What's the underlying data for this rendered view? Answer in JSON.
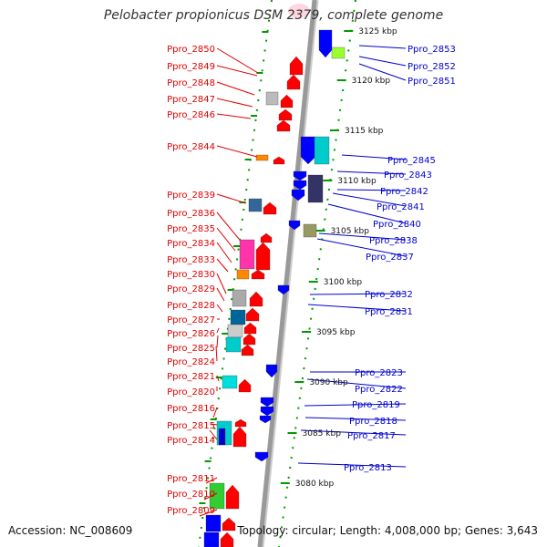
{
  "title": "Pelobacter propionicus DSM 2379, complete genome",
  "footer": {
    "accession": "Accession: NC_008609",
    "topology": "Topology: circular; Length: 4,008,000 bp; Genes: 3,643"
  },
  "colors": {
    "left_label": "#e00000",
    "right_label": "#0000d0",
    "backbone": "#999999",
    "tick": "#009900"
  },
  "scale_labels": [
    "3125 kbp",
    "3120 kbp",
    "3115 kbp",
    "3110 kbp",
    "3105 kbp",
    "3100 kbp",
    "3095 kbp",
    "3090 kbp",
    "3085 kbp",
    "3080 kbp"
  ],
  "left_labels": [
    "Ppro_2850",
    "Ppro_2849",
    "Ppro_2848",
    "Ppro_2847",
    "Ppro_2846",
    "Ppro_2844",
    "Ppro_2839",
    "Ppro_2836",
    "Ppro_2835",
    "Ppro_2834",
    "Ppro_2833",
    "Ppro_2830",
    "Ppro_2829",
    "Ppro_2828",
    "Ppro_2827",
    "Ppro_2826",
    "Ppro_2825",
    "Ppro_2824",
    "Ppro_2821",
    "Ppro_2820",
    "Ppro_2816",
    "Ppro_2815",
    "Ppro_2814",
    "Ppro_2811",
    "Ppro_2810",
    "Ppro_2809"
  ],
  "right_labels": [
    "Ppro_2853",
    "Ppro_2852",
    "Ppro_2851",
    "Ppro_2845",
    "Ppro_2843",
    "Ppro_2842",
    "Ppro_2841",
    "Ppro_2840",
    "Ppro_2838",
    "Ppro_2837",
    "Ppro_2832",
    "Ppro_2831",
    "Ppro_2823",
    "Ppro_2822",
    "Ppro_2819",
    "Ppro_2818",
    "Ppro_2817",
    "Ppro_2813"
  ]
}
